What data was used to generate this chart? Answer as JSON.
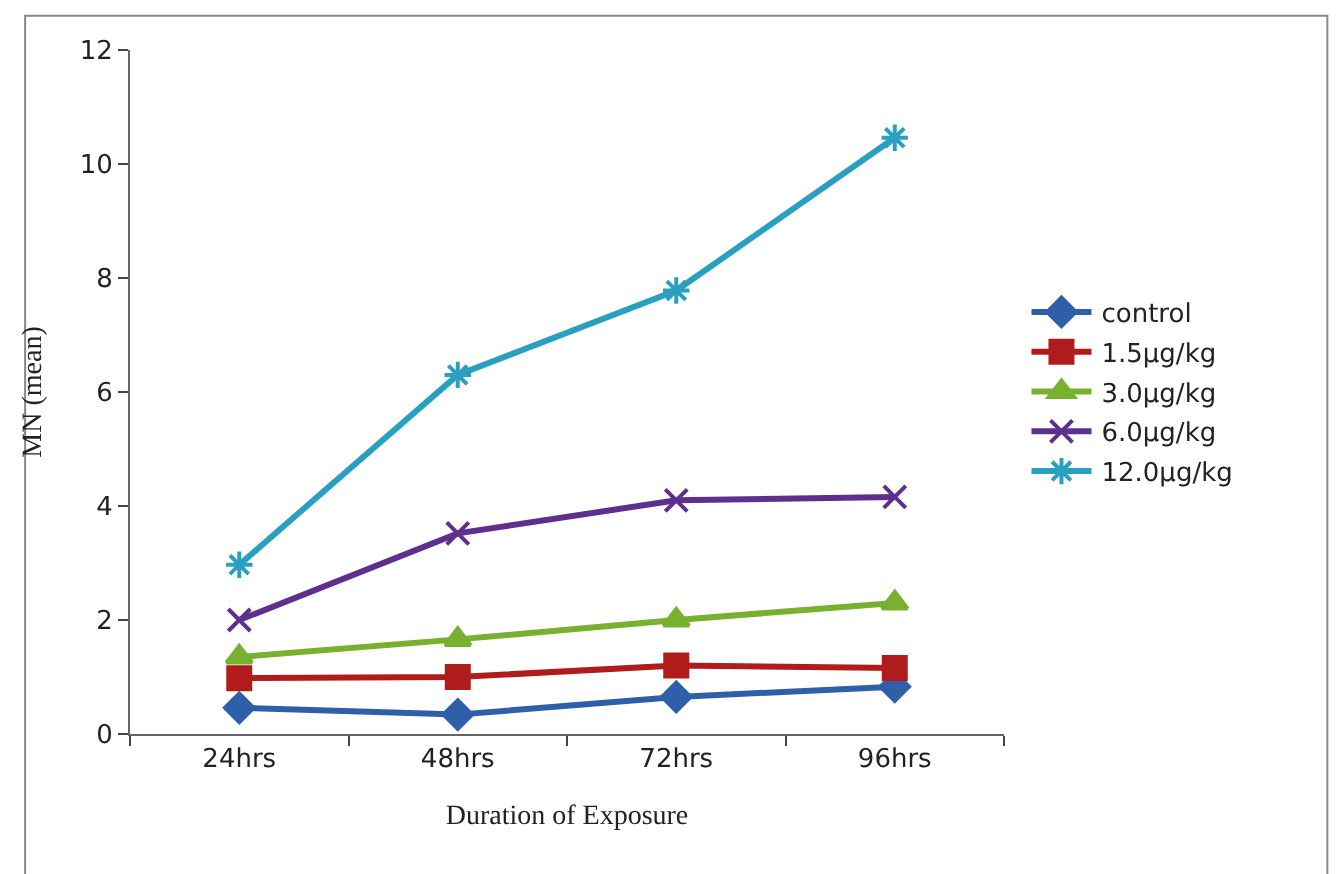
{
  "chart_data": {
    "type": "line",
    "xlabel": "Duration of Exposure",
    "ylabel": "MN (mean)",
    "categories": [
      "24hrs",
      "48hrs",
      "72hrs",
      "96hrs"
    ],
    "series": [
      {
        "name": "control",
        "color": "#2e5fa8",
        "marker": "diamond",
        "values": [
          0.46,
          0.34,
          0.65,
          0.83
        ]
      },
      {
        "name": "1.5µg/kg",
        "color": "#b01c1c",
        "marker": "square",
        "values": [
          0.98,
          1.0,
          1.2,
          1.16
        ]
      },
      {
        "name": "3.0µg/kg",
        "color": "#78b12f",
        "marker": "triangle",
        "values": [
          1.35,
          1.66,
          2.0,
          2.3
        ]
      },
      {
        "name": "6.0µg/kg",
        "color": "#5e2f8c",
        "marker": "cross",
        "values": [
          2.0,
          3.52,
          4.1,
          4.16
        ]
      },
      {
        "name": "12.0µg/kg",
        "color": "#2aa0c0",
        "marker": "cross",
        "values": [
          2.97,
          6.3,
          7.78,
          10.46
        ]
      }
    ],
    "ylim": [
      0,
      12
    ],
    "yticks": [
      0,
      2,
      4,
      6,
      8,
      10,
      12
    ],
    "legend": "right"
  }
}
